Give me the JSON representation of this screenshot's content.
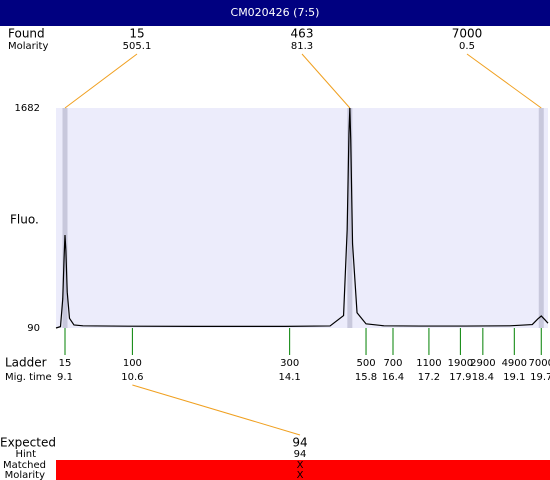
{
  "header": {
    "title": "CM020426 (7:5)"
  },
  "chart_data": {
    "type": "line",
    "ylabel": "Fluo.",
    "ylim": [
      90,
      1682
    ],
    "yticks": [
      1682,
      90
    ],
    "xlim": [
      8.9,
      19.85
    ],
    "x": [
      8.9,
      9.0,
      9.05,
      9.08,
      9.1,
      9.12,
      9.15,
      9.2,
      9.3,
      9.5,
      9.8,
      10.5,
      12,
      14,
      15.0,
      15.3,
      15.38,
      15.42,
      15.44,
      15.46,
      15.5,
      15.6,
      15.8,
      16.2,
      17,
      18,
      19,
      19.5,
      19.62,
      19.7,
      19.78,
      19.85
    ],
    "series": [
      {
        "color": "#000000",
        "values": [
          90,
          100,
          300,
          600,
          763,
          650,
          350,
          160,
          112,
          106,
          105,
          103,
          102,
          102,
          105,
          180,
          800,
          1500,
          1682,
          1450,
          700,
          200,
          120,
          106,
          104,
          104,
          106,
          115,
          155,
          177,
          150,
          125
        ]
      }
    ],
    "found": {
      "label": "Found",
      "molarity_label": "Molarity",
      "sizes": [
        15,
        463,
        7000
      ],
      "molarity": [
        505.1,
        81.3,
        0.5
      ],
      "times": [
        9.1,
        15.44,
        19.7
      ]
    },
    "ladder": {
      "label": "Ladder",
      "time_label": "Mig. time",
      "sizes": [
        15,
        100,
        300,
        500,
        700,
        1100,
        1900,
        2900,
        4900,
        7000
      ],
      "times": [
        9.1,
        10.6,
        14.1,
        15.8,
        16.4,
        17.2,
        17.9,
        18.4,
        19.1,
        19.7
      ]
    },
    "expected": {
      "label": "Expected",
      "value": 94,
      "hint_label": "Hint",
      "hint": 94,
      "matched_label": "Matched",
      "matched": "X",
      "molarity_label": "Molarity",
      "molarity": "X"
    }
  }
}
